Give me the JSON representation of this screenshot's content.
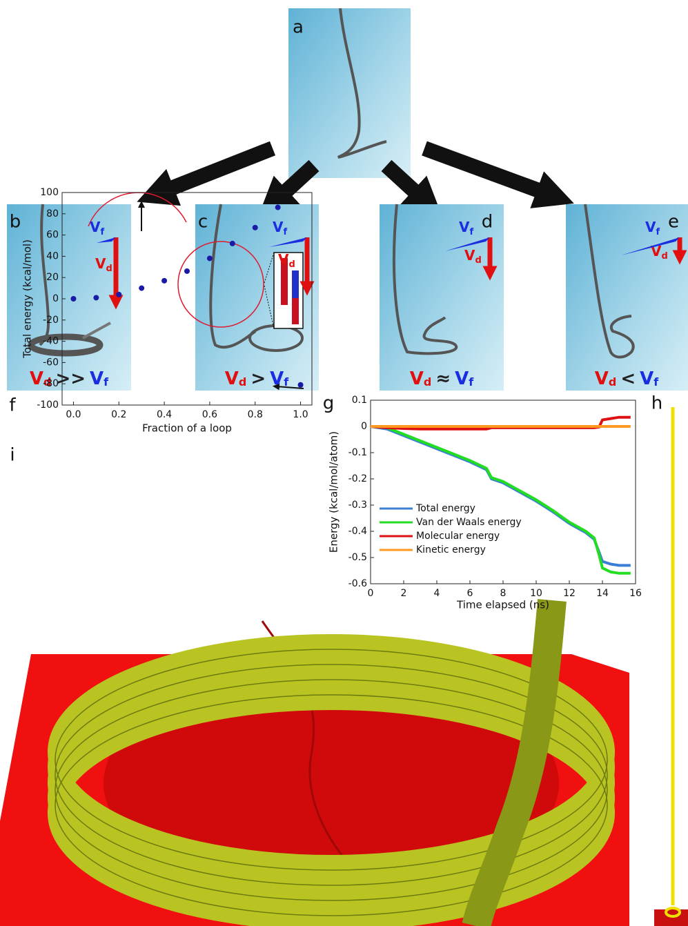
{
  "panels": [
    {
      "label": "a"
    },
    {
      "label": "b",
      "symbol": "V",
      "drag_sub": "d",
      "feed_sub": "f",
      "relation": ">>"
    },
    {
      "label": "c",
      "symbol": "V",
      "drag_sub": "d",
      "feed_sub": "f",
      "relation": ">"
    },
    {
      "label": "d",
      "symbol": "V",
      "drag_sub": "d",
      "feed_sub": "f",
      "relation": "≈"
    },
    {
      "label": "e",
      "symbol": "V",
      "drag_sub": "d",
      "feed_sub": "f",
      "relation": "<"
    },
    {
      "label": "f"
    },
    {
      "label": "g"
    },
    {
      "label": "h"
    },
    {
      "label": "i"
    }
  ],
  "chart_data": [
    {
      "type": "scatter",
      "ylabel": "Total energy (kcal/mol)",
      "xlabel": "Fraction of a loop",
      "x": [
        0,
        0.1,
        0.2,
        0.3,
        0.4,
        0.5,
        0.6,
        0.7,
        0.8,
        0.9,
        1.0
      ],
      "values": [
        0,
        1,
        4,
        10,
        17,
        26,
        38,
        52,
        67,
        86,
        -81
      ],
      "color": "#1a1aa8",
      "xlim": [
        -0.05,
        1.05
      ],
      "ylim": [
        -100,
        100
      ],
      "xticks": [
        {
          "value": 0,
          "label": "0.0"
        },
        {
          "value": 0.2,
          "label": "0.2"
        },
        {
          "value": 0.4,
          "label": "0.4"
        },
        {
          "value": 0.6,
          "label": "0.6"
        },
        {
          "value": 0.8,
          "label": "0.8"
        },
        {
          "value": 1,
          "label": "1.0"
        }
      ],
      "yticks": [
        100,
        80,
        60,
        40,
        20,
        0,
        -20,
        -40,
        -60,
        -80,
        -100
      ]
    },
    {
      "type": "line",
      "ylabel": "Energy (kcal/mol/atom)",
      "xlabel": "Time elapsed (ns)",
      "x": [
        0,
        1,
        2,
        3,
        4,
        5,
        6,
        7,
        7.3,
        8,
        9,
        10,
        11,
        12,
        13,
        13.5,
        13.8,
        14,
        14.5,
        15,
        15.7
      ],
      "series": [
        {
          "name": "Total energy",
          "color": "#3a7fd5",
          "values": [
            0,
            -0.01,
            -0.035,
            -0.06,
            -0.085,
            -0.11,
            -0.135,
            -0.165,
            -0.2,
            -0.215,
            -0.25,
            -0.285,
            -0.325,
            -0.37,
            -0.405,
            -0.43,
            -0.48,
            -0.515,
            -0.525,
            -0.53,
            -0.53
          ]
        },
        {
          "name": "Van der Waals energy",
          "color": "#22dd22",
          "values": [
            0,
            -0.005,
            -0.03,
            -0.055,
            -0.08,
            -0.105,
            -0.13,
            -0.16,
            -0.195,
            -0.21,
            -0.245,
            -0.28,
            -0.32,
            -0.365,
            -0.4,
            -0.425,
            -0.49,
            -0.54,
            -0.555,
            -0.56,
            -0.56
          ]
        },
        {
          "name": "Molecular energy",
          "color": "#dd1111",
          "values": [
            0,
            -0.005,
            -0.008,
            -0.01,
            -0.01,
            -0.01,
            -0.01,
            -0.01,
            -0.005,
            -0.005,
            -0.005,
            -0.005,
            -0.005,
            -0.005,
            -0.005,
            -0.005,
            -0.002,
            0.025,
            0.03,
            0.035,
            0.035
          ]
        },
        {
          "name": "Kinetic energy",
          "color": "#ff9922",
          "values": [
            0,
            0,
            0,
            0,
            0,
            0,
            0,
            0,
            0,
            0,
            0,
            0,
            0,
            0,
            0,
            0,
            0,
            0,
            0,
            0,
            0
          ]
        }
      ],
      "xlim": [
        0,
        16
      ],
      "ylim": [
        -0.6,
        0.1
      ],
      "xticks": [
        0,
        2,
        4,
        6,
        8,
        10,
        12,
        14,
        16
      ],
      "yticks": [
        0.1,
        0,
        -0.1,
        -0.2,
        -0.3,
        -0.4,
        -0.5,
        -0.6
      ]
    }
  ]
}
